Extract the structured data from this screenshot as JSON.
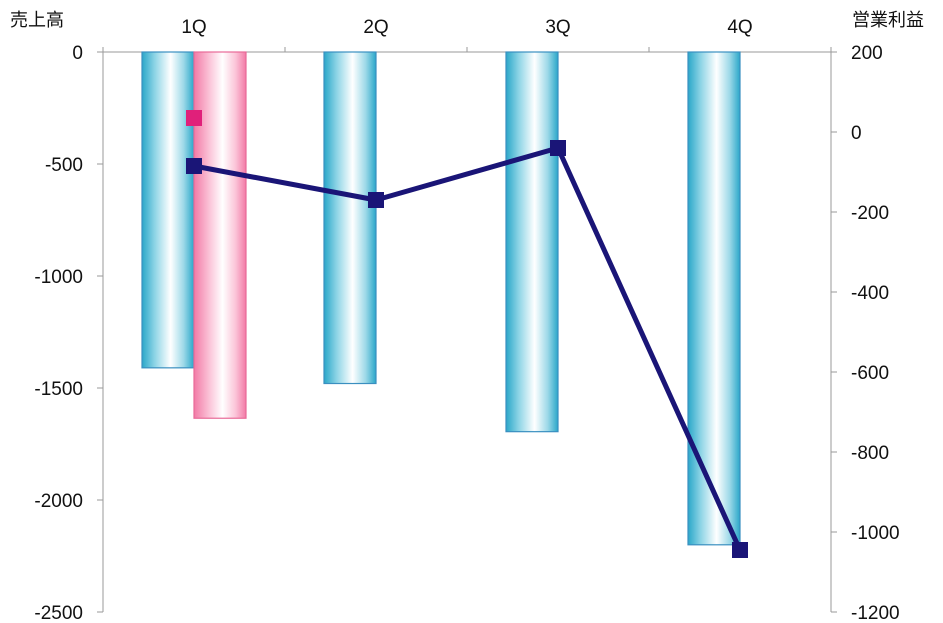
{
  "chart_data": {
    "type": "bar",
    "categories": [
      "1Q",
      "2Q",
      "3Q",
      "4Q"
    ],
    "left_axis": {
      "label": "売上高",
      "range": [
        -2500,
        0
      ],
      "ticks": [
        0,
        -500,
        -1000,
        -1500,
        -2000,
        -2500
      ]
    },
    "right_axis": {
      "label": "営業利益",
      "range": [
        -1200,
        200
      ],
      "ticks": [
        200,
        0,
        -200,
        -400,
        -600,
        -800,
        -1000,
        -1200
      ]
    },
    "series": [
      {
        "type": "bar",
        "axis": "left",
        "color": "#3bb0cf",
        "values": [
          -1410,
          -1480,
          -1695,
          -2200
        ]
      },
      {
        "type": "bar",
        "axis": "left",
        "color": "#f48fb1",
        "values": [
          -1635,
          null,
          null,
          null
        ]
      },
      {
        "type": "line",
        "axis": "right",
        "color": "#1a1577",
        "values": [
          -85,
          -170,
          -40,
          -1045
        ]
      },
      {
        "type": "scatter",
        "axis": "right",
        "color": "#e0207a",
        "values": [
          35,
          null,
          null,
          null
        ]
      }
    ],
    "grid": false,
    "legend": "none"
  }
}
